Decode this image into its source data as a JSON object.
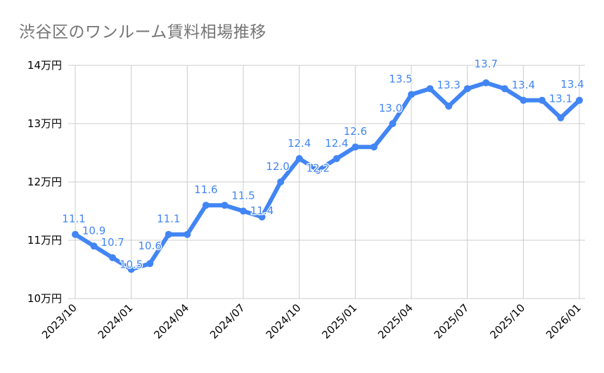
{
  "chart_data": {
    "type": "line",
    "title": "渋谷区のワンルーム賃料相場推移",
    "xlabel": "",
    "ylabel": "",
    "ylim": [
      10,
      14
    ],
    "y_unit_suffix": "万円",
    "y_ticks": [
      "10万円",
      "11万円",
      "12万円",
      "13万円",
      "14万円"
    ],
    "x_tick_labels": [
      "2023/10",
      "2024/01",
      "2024/04",
      "2024/07",
      "2024/10",
      "2025/01",
      "2025/04",
      "2025/07",
      "2025/10",
      "2026/01"
    ],
    "grid": true,
    "legend": "none",
    "categories": [
      "2023/10",
      "2023/11",
      "2023/12",
      "2024/01",
      "2024/02",
      "2024/03",
      "2024/04",
      "2024/05",
      "2024/06",
      "2024/07",
      "2024/08",
      "2024/09",
      "2024/10",
      "2024/11",
      "2024/12",
      "2025/01",
      "2025/02",
      "2025/03",
      "2025/04",
      "2025/05",
      "2025/06",
      "2025/07",
      "2025/08",
      "2025/09",
      "2025/10",
      "2025/11",
      "2025/12",
      "2026/01"
    ],
    "series": [
      {
        "name": "賃料相場",
        "color": "#4285f4",
        "values": [
          11.1,
          10.9,
          10.7,
          10.5,
          10.6,
          11.1,
          11.1,
          11.6,
          11.6,
          11.5,
          11.4,
          12.0,
          12.4,
          12.2,
          12.4,
          12.6,
          12.6,
          13.0,
          13.5,
          13.6,
          13.3,
          13.6,
          13.7,
          13.6,
          13.4,
          13.4,
          13.1,
          13.4
        ],
        "labels": [
          "11.1",
          "10.9",
          "10.7",
          "10.5",
          "10.6",
          "11.1",
          null,
          "11.6",
          null,
          "11.5",
          "11.4",
          "12.0",
          "12.4",
          "12.2",
          "12.4",
          "12.6",
          null,
          "13.0",
          "13.5",
          null,
          "13.3",
          null,
          "13.7",
          null,
          "13.4",
          null,
          "13.1",
          "13.4"
        ]
      }
    ]
  },
  "colors": {
    "line": "#4285f4",
    "grid": "#cccccc",
    "title": "#757575",
    "axis_text": "#000000"
  }
}
